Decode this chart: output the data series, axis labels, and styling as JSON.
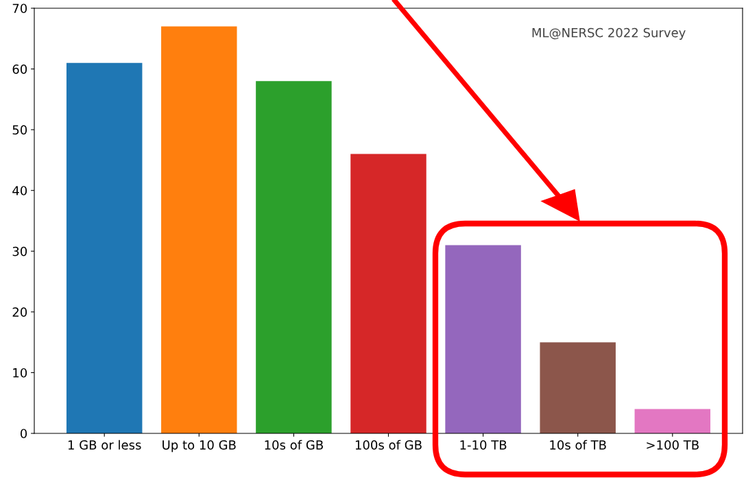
{
  "chart_data": {
    "type": "bar",
    "categories": [
      "1 GB or less",
      "Up to 10 GB",
      "10s of GB",
      "100s of GB",
      "1-10 TB",
      "10s of TB",
      ">100 TB"
    ],
    "values": [
      61,
      67,
      58,
      46,
      31,
      15,
      4
    ],
    "colors": [
      "#1f77b4",
      "#ff7f0e",
      "#2ca02c",
      "#d62728",
      "#9467bd",
      "#8c564b",
      "#e377c2"
    ],
    "ylim": [
      0,
      70
    ],
    "yticks": [
      0,
      10,
      20,
      30,
      40,
      50,
      60,
      70
    ],
    "annotations": [
      "ML@NERSC 2022 Survey"
    ],
    "grid": false,
    "legend": false
  }
}
